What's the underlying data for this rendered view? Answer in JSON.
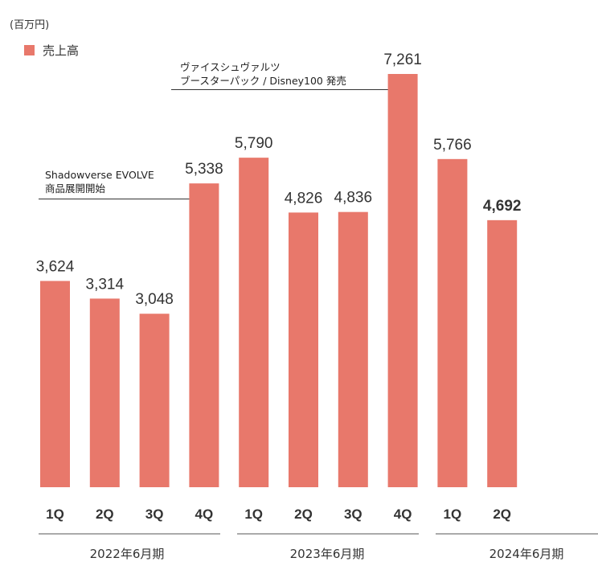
{
  "unit_label": "(百万円)",
  "colors": {
    "bar": "#E8786B",
    "text": "#333333"
  },
  "annotations": [
    {
      "lines": [
        "Shadowverse EVOLVE",
        "商品展開開始"
      ]
    },
    {
      "lines": [
        "ヴァイスシュヴァルツ",
        "ブースターパック / Disney100 発売"
      ]
    }
  ],
  "chart_data": {
    "type": "bar",
    "categories": [
      "1Q",
      "2Q",
      "3Q",
      "4Q",
      "1Q",
      "2Q",
      "3Q",
      "4Q",
      "1Q",
      "2Q"
    ],
    "groups": [
      {
        "label": "2022年6月期",
        "count": 4
      },
      {
        "label": "2023年6月期",
        "count": 4
      },
      {
        "label": "2024年6月期",
        "count": 2
      }
    ],
    "series": [
      {
        "name": "売上高",
        "values": [
          3624,
          3314,
          3048,
          5338,
          5790,
          4826,
          4836,
          7261,
          5766,
          4692
        ]
      }
    ],
    "value_labels": [
      "3,624",
      "3,314",
      "3,048",
      "5,338",
      "5,790",
      "4,826",
      "4,836",
      "7,261",
      "5,766",
      "4,692"
    ],
    "highlight_index": 9,
    "ylim": [
      0,
      7261
    ],
    "legend": "top-left",
    "grid": false
  }
}
